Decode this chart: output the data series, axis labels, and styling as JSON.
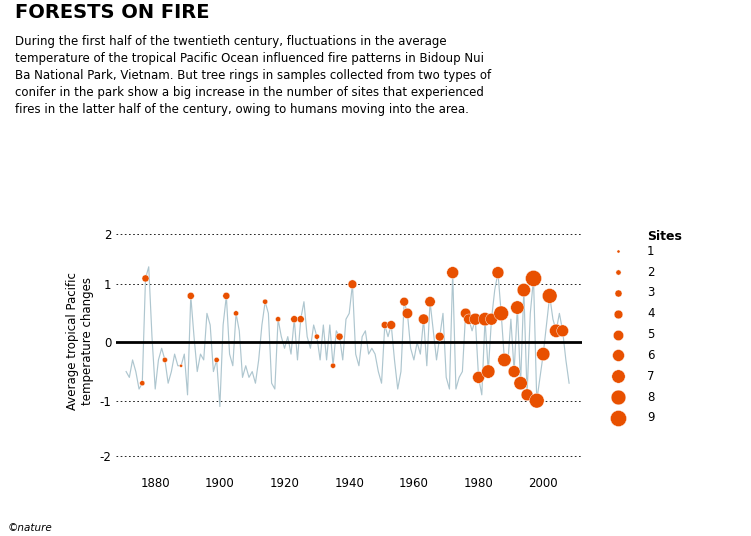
{
  "title": "FORESTS ON FIRE",
  "subtitle": "During the first half of the twentieth century, fluctuations in the average\ntemperature of the tropical Pacific Ocean influenced fire patterns in Bidoup Nui\nBa National Park, Vietnam. But tree rings in samples collected from two types of\nconifer in the park show a big increase in the number of sites that experienced\nfires in the latter half of the century, owing to humans moving into the area.",
  "ylabel": "Average tropical Pacific\ntemperature changes",
  "line_color": "#aec6cf",
  "zero_line_color": "#000000",
  "dot_color": "#e85000",
  "legend_title": "Sites",
  "enso_years": [
    1871,
    1872,
    1873,
    1874,
    1875,
    1876,
    1877,
    1878,
    1879,
    1880,
    1881,
    1882,
    1883,
    1884,
    1885,
    1886,
    1887,
    1888,
    1889,
    1890,
    1891,
    1892,
    1893,
    1894,
    1895,
    1896,
    1897,
    1898,
    1899,
    1900,
    1901,
    1902,
    1903,
    1904,
    1905,
    1906,
    1907,
    1908,
    1909,
    1910,
    1911,
    1912,
    1913,
    1914,
    1915,
    1916,
    1917,
    1918,
    1919,
    1920,
    1921,
    1922,
    1923,
    1924,
    1925,
    1926,
    1927,
    1928,
    1929,
    1930,
    1931,
    1932,
    1933,
    1934,
    1935,
    1936,
    1937,
    1938,
    1939,
    1940,
    1941,
    1942,
    1943,
    1944,
    1945,
    1946,
    1947,
    1948,
    1949,
    1950,
    1951,
    1952,
    1953,
    1954,
    1955,
    1956,
    1957,
    1958,
    1959,
    1960,
    1961,
    1962,
    1963,
    1964,
    1965,
    1966,
    1967,
    1968,
    1969,
    1970,
    1971,
    1972,
    1973,
    1974,
    1975,
    1976,
    1977,
    1978,
    1979,
    1980,
    1981,
    1982,
    1983,
    1984,
    1985,
    1986,
    1987,
    1988,
    1989,
    1990,
    1991,
    1992,
    1993,
    1994,
    1995,
    1996,
    1997,
    1998,
    1999,
    2000,
    2001,
    2002,
    2003,
    2004,
    2005,
    2006,
    2007,
    2008
  ],
  "enso_values": [
    -0.5,
    -0.6,
    -0.3,
    -0.5,
    -0.8,
    -0.7,
    1.1,
    1.3,
    0.1,
    -0.8,
    -0.3,
    -0.1,
    -0.3,
    -0.7,
    -0.5,
    -0.2,
    -0.4,
    -0.4,
    -0.2,
    -0.9,
    0.8,
    0.1,
    -0.5,
    -0.2,
    -0.3,
    0.5,
    0.3,
    -0.5,
    -0.3,
    -1.1,
    0.3,
    0.8,
    -0.2,
    -0.4,
    0.5,
    0.2,
    -0.6,
    -0.4,
    -0.6,
    -0.5,
    -0.7,
    -0.3,
    0.3,
    0.7,
    0.5,
    -0.7,
    -0.8,
    0.4,
    0.1,
    -0.1,
    0.1,
    -0.2,
    0.4,
    -0.3,
    0.4,
    0.7,
    0.1,
    -0.1,
    0.3,
    0.1,
    -0.3,
    0.3,
    -0.3,
    0.3,
    -0.4,
    0.2,
    0.1,
    -0.3,
    0.4,
    0.5,
    1.0,
    -0.2,
    -0.4,
    0.1,
    0.2,
    -0.2,
    -0.1,
    -0.2,
    -0.5,
    -0.7,
    0.3,
    0.1,
    0.3,
    -0.3,
    -0.8,
    -0.5,
    0.7,
    0.5,
    -0.1,
    -0.3,
    0.0,
    -0.2,
    0.4,
    -0.4,
    0.7,
    0.2,
    -0.3,
    0.1,
    0.5,
    -0.6,
    -0.8,
    1.2,
    -0.8,
    -0.6,
    -0.5,
    0.5,
    0.4,
    0.2,
    0.4,
    -0.6,
    -0.9,
    0.4,
    -0.5,
    0.4,
    0.9,
    1.2,
    0.5,
    -0.3,
    -0.4,
    0.4,
    -0.5,
    0.6,
    -0.7,
    0.9,
    -0.9,
    0.5,
    1.1,
    -1.0,
    -0.6,
    -0.2,
    0.3,
    0.8,
    0.4,
    0.2,
    0.5,
    0.2,
    -0.3,
    -0.7
  ],
  "fire_years": [
    1876,
    1877,
    1883,
    1888,
    1891,
    1899,
    1902,
    1905,
    1914,
    1918,
    1923,
    1925,
    1930,
    1935,
    1937,
    1941,
    1951,
    1953,
    1957,
    1958,
    1963,
    1965,
    1968,
    1972,
    1976,
    1977,
    1979,
    1980,
    1982,
    1983,
    1984,
    1986,
    1987,
    1988,
    1991,
    1992,
    1993,
    1994,
    1995,
    1997,
    1998,
    2000,
    2002,
    2004,
    2006
  ],
  "fire_sites": [
    2,
    3,
    2,
    1,
    3,
    2,
    3,
    2,
    2,
    2,
    3,
    3,
    2,
    2,
    3,
    4,
    3,
    4,
    4,
    5,
    5,
    5,
    4,
    6,
    5,
    5,
    6,
    6,
    7,
    7,
    6,
    6,
    8,
    7,
    6,
    7,
    7,
    7,
    6,
    9,
    8,
    7,
    8,
    7,
    6
  ],
  "xlim": [
    1868,
    2012
  ],
  "xticks": [
    1880,
    1900,
    1920,
    1940,
    1960,
    1980,
    2000
  ],
  "nature_credit": "©nature"
}
